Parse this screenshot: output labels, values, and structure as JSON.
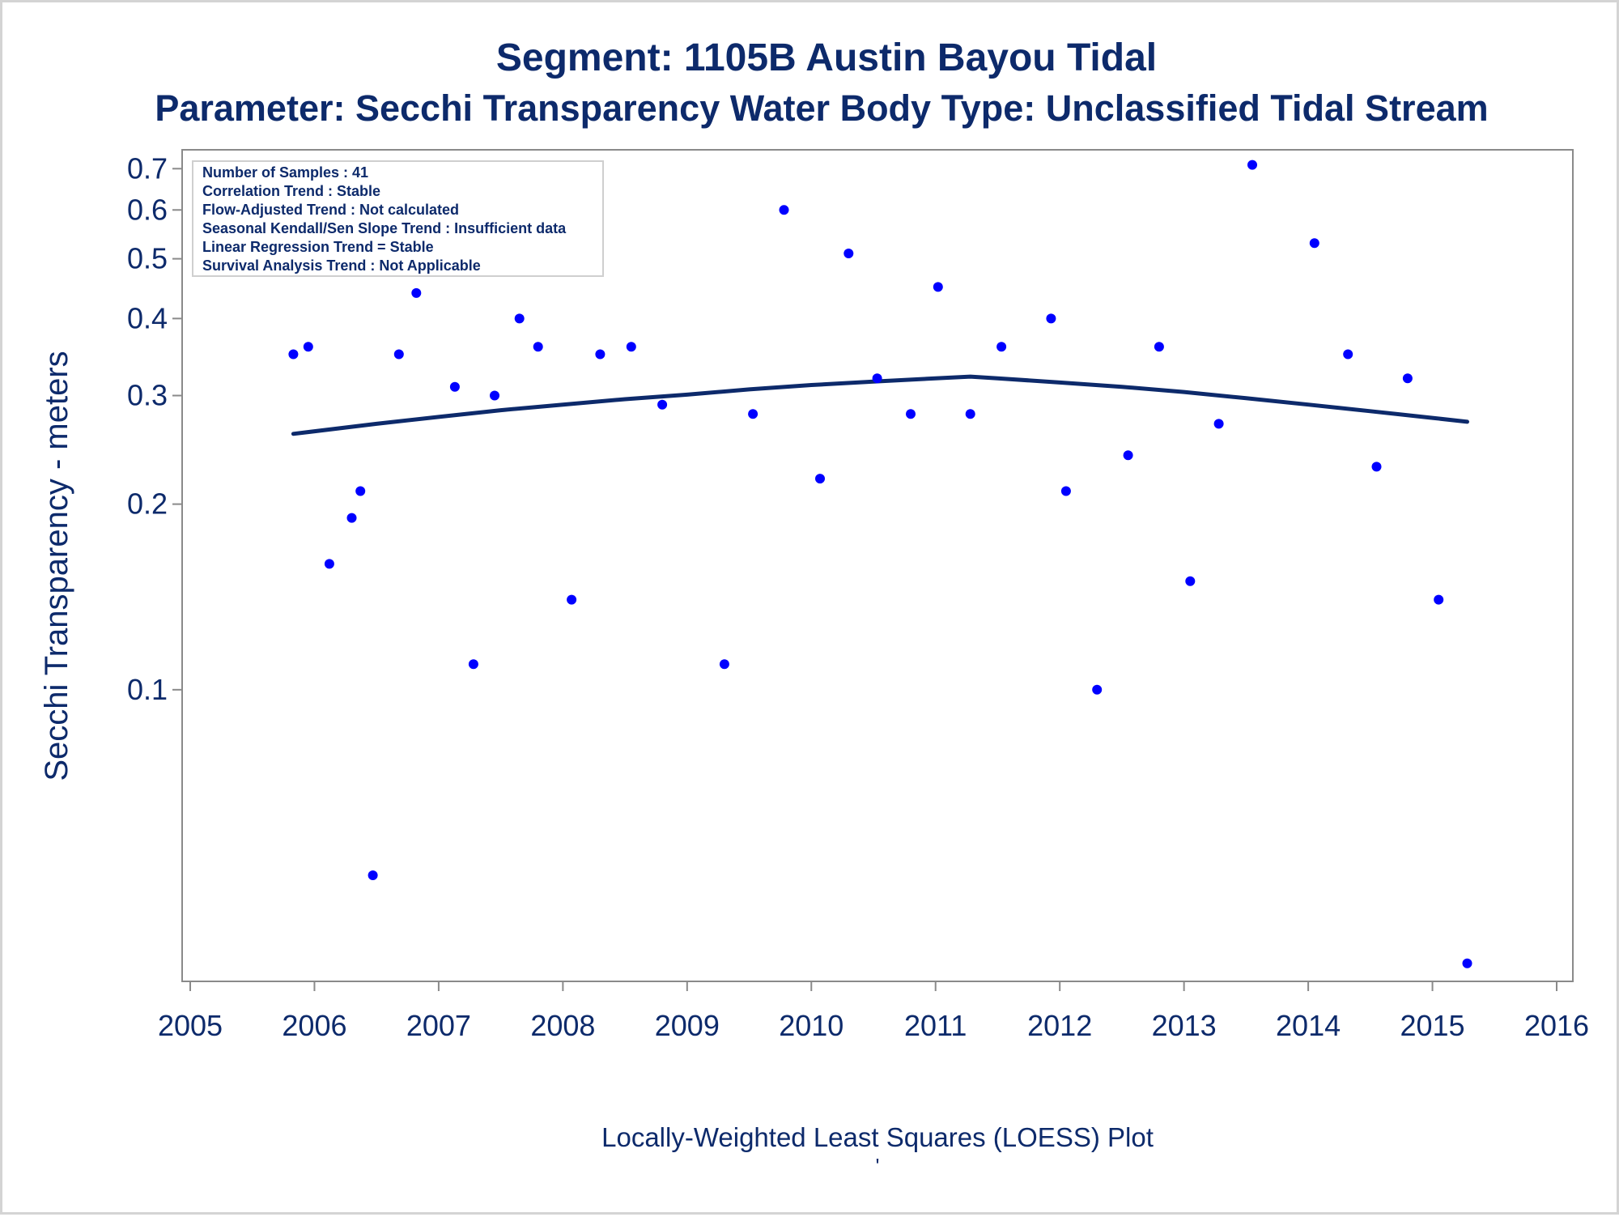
{
  "chart_data": {
    "type": "scatter",
    "title": "Segment: 1105B  Austin Bayou Tidal",
    "subtitle": "Parameter: Secchi Transparency   Water Body Type: Unclassified Tidal Stream",
    "xlabel": "Locally-Weighted Least Squares (LOESS) Plot",
    "footnote": "'",
    "ylabel": "Secchi Transparency - meters",
    "y_scale": "log",
    "xlim": [
      2005,
      2016
    ],
    "ylim": [
      0.035,
      0.72
    ],
    "x_ticks": [
      "2005",
      "2006",
      "2007",
      "2008",
      "2009",
      "2010",
      "2011",
      "2012",
      "2013",
      "2014",
      "2015",
      "2016"
    ],
    "y_ticks": [
      "0.1",
      "0.2",
      "0.3",
      "0.4",
      "0.5",
      "0.6",
      "0.7"
    ],
    "grid": false,
    "marker_color": "#0000ff",
    "line_color": "#0d2a6b",
    "info_box": {
      "placement": "top-left",
      "lines": [
        "Number of Samples : 41",
        "Correlation Trend : Stable",
        "Flow-Adjusted Trend : Not calculated",
        "Seasonal Kendall/Sen Slope Trend : Insufficient data",
        "Linear Regression Trend = Stable",
        "Survival Analysis Trend : Not Applicable"
      ]
    },
    "series": [
      {
        "type": "scatter",
        "points": [
          {
            "x": 2005.83,
            "y": 0.35
          },
          {
            "x": 2005.95,
            "y": 0.36
          },
          {
            "x": 2006.12,
            "y": 0.16
          },
          {
            "x": 2006.3,
            "y": 0.19
          },
          {
            "x": 2006.37,
            "y": 0.21
          },
          {
            "x": 2006.47,
            "y": 0.05
          },
          {
            "x": 2006.68,
            "y": 0.35
          },
          {
            "x": 2006.82,
            "y": 0.44
          },
          {
            "x": 2007.13,
            "y": 0.31
          },
          {
            "x": 2007.28,
            "y": 0.11
          },
          {
            "x": 2007.45,
            "y": 0.3
          },
          {
            "x": 2007.65,
            "y": 0.4
          },
          {
            "x": 2007.8,
            "y": 0.36
          },
          {
            "x": 2008.07,
            "y": 0.14
          },
          {
            "x": 2008.3,
            "y": 0.35
          },
          {
            "x": 2008.55,
            "y": 0.36
          },
          {
            "x": 2008.8,
            "y": 0.29
          },
          {
            "x": 2009.3,
            "y": 0.11
          },
          {
            "x": 2009.53,
            "y": 0.28
          },
          {
            "x": 2009.78,
            "y": 0.6
          },
          {
            "x": 2010.07,
            "y": 0.22
          },
          {
            "x": 2010.3,
            "y": 0.51
          },
          {
            "x": 2010.53,
            "y": 0.32
          },
          {
            "x": 2010.8,
            "y": 0.28
          },
          {
            "x": 2011.02,
            "y": 0.45
          },
          {
            "x": 2011.28,
            "y": 0.28
          },
          {
            "x": 2011.53,
            "y": 0.36
          },
          {
            "x": 2011.93,
            "y": 0.4
          },
          {
            "x": 2012.05,
            "y": 0.21
          },
          {
            "x": 2012.3,
            "y": 0.1
          },
          {
            "x": 2012.55,
            "y": 0.24
          },
          {
            "x": 2012.8,
            "y": 0.36
          },
          {
            "x": 2013.05,
            "y": 0.15
          },
          {
            "x": 2013.28,
            "y": 0.27
          },
          {
            "x": 2013.55,
            "y": 0.71
          },
          {
            "x": 2014.05,
            "y": 0.53
          },
          {
            "x": 2014.32,
            "y": 0.35
          },
          {
            "x": 2014.55,
            "y": 0.23
          },
          {
            "x": 2014.8,
            "y": 0.32
          },
          {
            "x": 2015.05,
            "y": 0.14
          },
          {
            "x": 2015.28,
            "y": 0.036
          }
        ]
      },
      {
        "type": "line",
        "points": [
          {
            "x": 2005.83,
            "y": 0.26
          },
          {
            "x": 2006.5,
            "y": 0.27
          },
          {
            "x": 2007.0,
            "y": 0.277
          },
          {
            "x": 2007.5,
            "y": 0.284
          },
          {
            "x": 2008.0,
            "y": 0.29
          },
          {
            "x": 2008.5,
            "y": 0.296
          },
          {
            "x": 2009.0,
            "y": 0.301
          },
          {
            "x": 2009.5,
            "y": 0.307
          },
          {
            "x": 2010.0,
            "y": 0.312
          },
          {
            "x": 2010.5,
            "y": 0.316
          },
          {
            "x": 2011.0,
            "y": 0.32
          },
          {
            "x": 2011.28,
            "y": 0.322
          },
          {
            "x": 2011.5,
            "y": 0.32
          },
          {
            "x": 2012.0,
            "y": 0.315
          },
          {
            "x": 2012.5,
            "y": 0.31
          },
          {
            "x": 2013.0,
            "y": 0.304
          },
          {
            "x": 2013.5,
            "y": 0.297
          },
          {
            "x": 2014.0,
            "y": 0.29
          },
          {
            "x": 2014.5,
            "y": 0.283
          },
          {
            "x": 2015.0,
            "y": 0.276
          },
          {
            "x": 2015.28,
            "y": 0.272
          }
        ]
      }
    ]
  }
}
